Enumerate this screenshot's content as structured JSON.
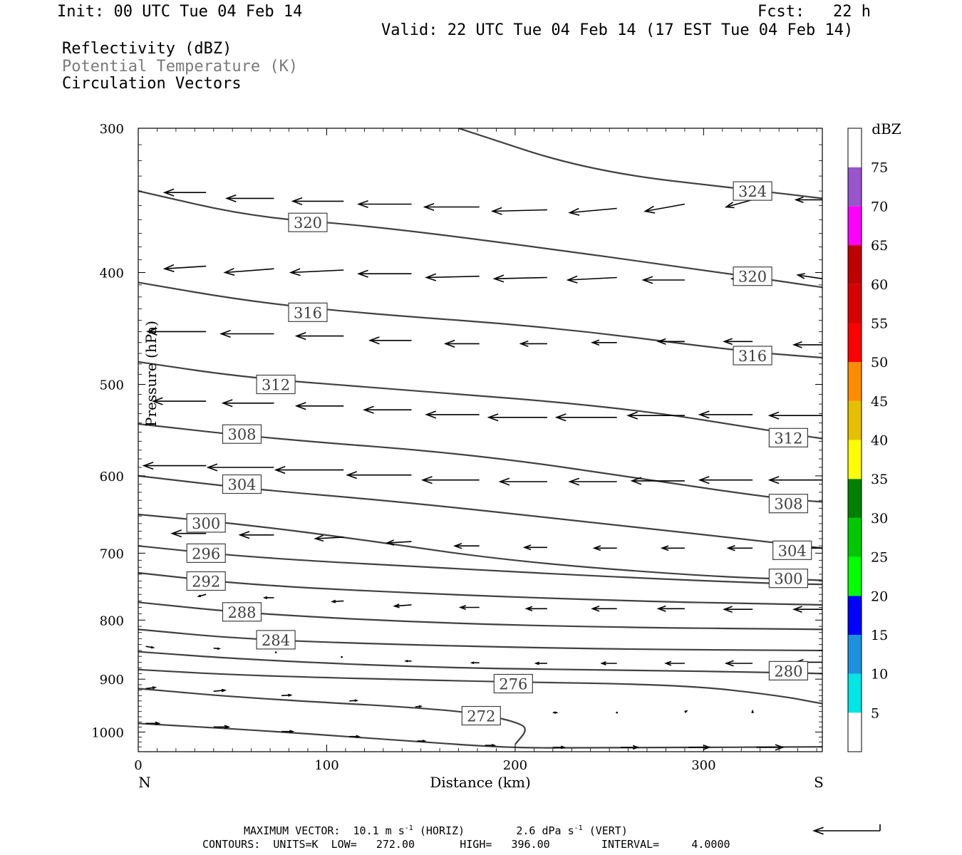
{
  "header": {
    "init": "Init: 00 UTC Tue 04 Feb 14",
    "fcst": "Fcst:   22 h",
    "valid": "Valid: 22 UTC Tue 04 Feb 14 (17 EST Tue 04 Feb 14)",
    "field1": "Reflectivity (dBZ)",
    "field2": "Potential Temperature (K)",
    "field3": "Circulation Vectors"
  },
  "footer": {
    "max_vector_label": "MAXIMUM VECTOR:",
    "max_vector_horiz": "10.1 m s",
    "horiz_suffix": "(HORIZ)",
    "max_vector_vert": "2.6 dPa s",
    "vert_suffix": "(VERT)",
    "sup": "-1",
    "contours": "CONTOURS:  UNITS=K  LOW=   272.00       HIGH=   396.00        INTERVAL=     4.0000"
  },
  "colors": {
    "contour": "#404040",
    "frame": "#000000",
    "legend": [
      "#ffffff",
      "#00e5e5",
      "#1e90e0",
      "#0000ff",
      "#00ff00",
      "#00c800",
      "#008000",
      "#ffff00",
      "#e5c000",
      "#ff8c00",
      "#ff0000",
      "#d70000",
      "#c00000",
      "#ff00ff",
      "#9955cc",
      "#ffffff"
    ]
  },
  "chart_data": {
    "type": "cross-section",
    "xlabel": "Distance (km)",
    "ylabel": "Pressure (hPa)",
    "xlim": [
      0,
      363
    ],
    "ylim": [
      300,
      1040
    ],
    "y_log": true,
    "xticks": [
      "0",
      "100",
      "200",
      "300"
    ],
    "xtick_values": [
      0,
      100,
      200,
      300
    ],
    "yticks": [
      "300",
      "400",
      "500",
      "600",
      "700",
      "800",
      "900",
      "1000"
    ],
    "ytick_values": [
      300,
      400,
      500,
      600,
      700,
      800,
      900,
      1000
    ],
    "left_end_label": "N",
    "right_end_label": "S",
    "colorbar_title": "dBZ",
    "colorbar_levels": [
      "5",
      "10",
      "15",
      "20",
      "25",
      "30",
      "35",
      "40",
      "45",
      "50",
      "55",
      "60",
      "65",
      "70",
      "75"
    ],
    "isentropes": [
      {
        "theta": 324,
        "points": [
          [
            170,
            300
          ],
          [
            240,
            327
          ],
          [
            330,
            340
          ],
          [
            363,
            345
          ]
        ]
      },
      {
        "theta": 320,
        "points": [
          [
            0,
            340
          ],
          [
            60,
            358
          ],
          [
            120,
            364
          ],
          [
            200,
            378
          ],
          [
            300,
            398
          ],
          [
            363,
            412
          ]
        ]
      },
      {
        "theta": 316,
        "points": [
          [
            0,
            408
          ],
          [
            60,
            424
          ],
          [
            120,
            434
          ],
          [
            220,
            446
          ],
          [
            320,
            468
          ],
          [
            363,
            474
          ]
        ]
      },
      {
        "theta": 312,
        "points": [
          [
            0,
            478
          ],
          [
            60,
            494
          ],
          [
            140,
            505
          ],
          [
            260,
            524
          ],
          [
            340,
            550
          ],
          [
            363,
            557
          ]
        ]
      },
      {
        "theta": 308,
        "points": [
          [
            0,
            541
          ],
          [
            70,
            557
          ],
          [
            180,
            575
          ],
          [
            280,
            608
          ],
          [
            340,
            628
          ],
          [
            363,
            632
          ]
        ]
      },
      {
        "theta": 304,
        "points": [
          [
            0,
            600
          ],
          [
            60,
            616
          ],
          [
            140,
            632
          ],
          [
            240,
            658
          ],
          [
            340,
            686
          ],
          [
            363,
            693
          ]
        ]
      },
      {
        "theta": 300,
        "points": [
          [
            0,
            648
          ],
          [
            60,
            662
          ],
          [
            120,
            682
          ],
          [
            200,
            712
          ],
          [
            300,
            733
          ],
          [
            363,
            739
          ]
        ]
      },
      {
        "theta": 296,
        "points": [
          [
            0,
            690
          ],
          [
            60,
            706
          ],
          [
            160,
            721
          ],
          [
            260,
            735
          ],
          [
            340,
            744
          ],
          [
            363,
            745
          ]
        ]
      },
      {
        "theta": 292,
        "points": [
          [
            0,
            728
          ],
          [
            60,
            746
          ],
          [
            160,
            760
          ],
          [
            260,
            770
          ],
          [
            340,
            775
          ],
          [
            363,
            776
          ]
        ]
      },
      {
        "theta": 288,
        "points": [
          [
            0,
            772
          ],
          [
            60,
            790
          ],
          [
            160,
            805
          ],
          [
            260,
            812
          ],
          [
            340,
            814
          ],
          [
            363,
            815
          ]
        ]
      },
      {
        "theta": 284,
        "points": [
          [
            0,
            815
          ],
          [
            60,
            832
          ],
          [
            160,
            842
          ],
          [
            260,
            848
          ],
          [
            363,
            850
          ]
        ]
      },
      {
        "theta": 280,
        "points": [
          [
            0,
            852
          ],
          [
            60,
            866
          ],
          [
            160,
            880
          ],
          [
            260,
            884
          ],
          [
            340,
            888
          ],
          [
            363,
            890
          ]
        ]
      },
      {
        "theta": 276,
        "points": [
          [
            0,
            883
          ],
          [
            60,
            894
          ],
          [
            180,
            904
          ],
          [
            290,
            910
          ],
          [
            340,
            930
          ],
          [
            363,
            945
          ]
        ]
      },
      {
        "theta": 272,
        "points": [
          [
            0,
            917
          ],
          [
            60,
            935
          ],
          [
            160,
            955
          ],
          [
            186,
            968
          ],
          [
            200,
            980
          ],
          [
            207,
            993
          ],
          [
            200,
            1025
          ]
        ]
      },
      {
        "theta": "unlabeled",
        "points": [
          [
            0,
            983
          ],
          [
            70,
            998
          ],
          [
            150,
            1020
          ],
          [
            196,
            1032
          ],
          [
            240,
            1032
          ],
          [
            363,
            1030
          ]
        ]
      }
    ],
    "contour_labels": [
      {
        "text": "324",
        "x": 326,
        "p": 340
      },
      {
        "text": "320",
        "x": 90,
        "p": 362
      },
      {
        "text": "320",
        "x": 326,
        "p": 403
      },
      {
        "text": "316",
        "x": 90,
        "p": 433
      },
      {
        "text": "316",
        "x": 326,
        "p": 472
      },
      {
        "text": "312",
        "x": 73,
        "p": 500
      },
      {
        "text": "312",
        "x": 345,
        "p": 556
      },
      {
        "text": "308",
        "x": 55,
        "p": 552
      },
      {
        "text": "308",
        "x": 345,
        "p": 634
      },
      {
        "text": "304",
        "x": 55,
        "p": 610
      },
      {
        "text": "304",
        "x": 347,
        "p": 696
      },
      {
        "text": "300",
        "x": 36,
        "p": 659
      },
      {
        "text": "300",
        "x": 345,
        "p": 736
      },
      {
        "text": "296",
        "x": 36,
        "p": 700
      },
      {
        "text": "292",
        "x": 36,
        "p": 740
      },
      {
        "text": "288",
        "x": 55,
        "p": 787
      },
      {
        "text": "284",
        "x": 73,
        "p": 832
      },
      {
        "text": "280",
        "x": 345,
        "p": 885
      },
      {
        "text": "276",
        "x": 199,
        "p": 908
      },
      {
        "text": "272",
        "x": 182,
        "p": 968
      }
    ],
    "vectors": [
      {
        "x": 36,
        "p": 341,
        "dx": -22,
        "dp": 0
      },
      {
        "x": 72,
        "p": 345,
        "dx": -25,
        "dp": 0
      },
      {
        "x": 109,
        "p": 347,
        "dx": -27,
        "dp": 0
      },
      {
        "x": 145,
        "p": 349,
        "dx": -28,
        "dp": 0
      },
      {
        "x": 181,
        "p": 351,
        "dx": -29,
        "dp": 0
      },
      {
        "x": 217,
        "p": 353,
        "dx": -29,
        "dp": 1
      },
      {
        "x": 254,
        "p": 352,
        "dx": -25,
        "dp": 3
      },
      {
        "x": 290,
        "p": 349,
        "dx": -21,
        "dp": 5
      },
      {
        "x": 326,
        "p": 346,
        "dx": -14,
        "dp": 5
      },
      {
        "x": 363,
        "p": 346,
        "dx": -14,
        "dp": 0
      },
      {
        "x": 36,
        "p": 395,
        "dx": -22,
        "dp": 2
      },
      {
        "x": 72,
        "p": 397,
        "dx": -26,
        "dp": 3
      },
      {
        "x": 109,
        "p": 398,
        "dx": -28,
        "dp": 2
      },
      {
        "x": 145,
        "p": 401,
        "dx": -28,
        "dp": 0
      },
      {
        "x": 181,
        "p": 403,
        "dx": -28,
        "dp": 1
      },
      {
        "x": 217,
        "p": 404,
        "dx": -28,
        "dp": 1
      },
      {
        "x": 254,
        "p": 404,
        "dx": -26,
        "dp": 2
      },
      {
        "x": 290,
        "p": 406,
        "dx": -22,
        "dp": 0
      },
      {
        "x": 326,
        "p": 405,
        "dx": -11,
        "dp": 0
      },
      {
        "x": 363,
        "p": 405,
        "dx": -13,
        "dp": -3
      },
      {
        "x": 36,
        "p": 450,
        "dx": -31,
        "dp": 0
      },
      {
        "x": 72,
        "p": 452,
        "dx": -28,
        "dp": 0
      },
      {
        "x": 109,
        "p": 454,
        "dx": -25,
        "dp": 0
      },
      {
        "x": 145,
        "p": 458,
        "dx": -22,
        "dp": 0
      },
      {
        "x": 181,
        "p": 461,
        "dx": -18,
        "dp": 0
      },
      {
        "x": 217,
        "p": 461,
        "dx": -14,
        "dp": 0
      },
      {
        "x": 254,
        "p": 460,
        "dx": -13,
        "dp": 0
      },
      {
        "x": 290,
        "p": 459,
        "dx": -14,
        "dp": 0
      },
      {
        "x": 326,
        "p": 459,
        "dx": -15,
        "dp": 0
      },
      {
        "x": 363,
        "p": 462,
        "dx": -15,
        "dp": 0
      },
      {
        "x": 36,
        "p": 517,
        "dx": -28,
        "dp": 0
      },
      {
        "x": 72,
        "p": 519,
        "dx": -27,
        "dp": 0
      },
      {
        "x": 109,
        "p": 522,
        "dx": -25,
        "dp": 0
      },
      {
        "x": 145,
        "p": 526,
        "dx": -25,
        "dp": 0
      },
      {
        "x": 181,
        "p": 531,
        "dx": -28,
        "dp": 0
      },
      {
        "x": 217,
        "p": 534,
        "dx": -31,
        "dp": 0
      },
      {
        "x": 254,
        "p": 534,
        "dx": -32,
        "dp": 0
      },
      {
        "x": 290,
        "p": 532,
        "dx": -30,
        "dp": 0
      },
      {
        "x": 326,
        "p": 531,
        "dx": -28,
        "dp": 0
      },
      {
        "x": 363,
        "p": 532,
        "dx": -28,
        "dp": 0
      },
      {
        "x": 36,
        "p": 588,
        "dx": -33,
        "dp": 0
      },
      {
        "x": 72,
        "p": 590,
        "dx": -35,
        "dp": 0
      },
      {
        "x": 109,
        "p": 593,
        "dx": -36,
        "dp": 0
      },
      {
        "x": 145,
        "p": 599,
        "dx": -34,
        "dp": 0
      },
      {
        "x": 181,
        "p": 605,
        "dx": -30,
        "dp": 0
      },
      {
        "x": 217,
        "p": 607,
        "dx": -25,
        "dp": 0
      },
      {
        "x": 254,
        "p": 607,
        "dx": -25,
        "dp": 0
      },
      {
        "x": 290,
        "p": 606,
        "dx": -28,
        "dp": 0
      },
      {
        "x": 326,
        "p": 605,
        "dx": -28,
        "dp": 0
      },
      {
        "x": 363,
        "p": 605,
        "dx": -28,
        "dp": 0
      },
      {
        "x": 36,
        "p": 673,
        "dx": -18,
        "dp": 0
      },
      {
        "x": 72,
        "p": 675,
        "dx": -18,
        "dp": 0
      },
      {
        "x": 109,
        "p": 678,
        "dx": -15,
        "dp": 2
      },
      {
        "x": 145,
        "p": 684,
        "dx": -13,
        "dp": 2
      },
      {
        "x": 181,
        "p": 690,
        "dx": -13,
        "dp": 0
      },
      {
        "x": 217,
        "p": 692,
        "dx": -12,
        "dp": 0
      },
      {
        "x": 254,
        "p": 693,
        "dx": -12,
        "dp": 0
      },
      {
        "x": 290,
        "p": 693,
        "dx": -12,
        "dp": 0
      },
      {
        "x": 326,
        "p": 693,
        "dx": -13,
        "dp": 0
      },
      {
        "x": 363,
        "p": 693,
        "dx": -13,
        "dp": 0
      },
      {
        "x": 36,
        "p": 760,
        "dx": -4,
        "dp": 3
      },
      {
        "x": 72,
        "p": 765,
        "dx": -5,
        "dp": 0
      },
      {
        "x": 109,
        "p": 770,
        "dx": -6,
        "dp": 1
      },
      {
        "x": 145,
        "p": 776,
        "dx": -9,
        "dp": 2
      },
      {
        "x": 181,
        "p": 780,
        "dx": -10,
        "dp": 0
      },
      {
        "x": 217,
        "p": 782,
        "dx": -11,
        "dp": 0
      },
      {
        "x": 254,
        "p": 782,
        "dx": -13,
        "dp": 0
      },
      {
        "x": 290,
        "p": 782,
        "dx": -14,
        "dp": 0
      },
      {
        "x": 326,
        "p": 783,
        "dx": -15,
        "dp": 0
      },
      {
        "x": 363,
        "p": 783,
        "dx": -15,
        "dp": 0
      },
      {
        "x": 4,
        "p": 843,
        "dx": 4,
        "dp": 2
      },
      {
        "x": 40,
        "p": 846,
        "dx": 3,
        "dp": 1
      },
      {
        "x": 73,
        "p": 853,
        "dx": 0,
        "dp": 0
      },
      {
        "x": 108,
        "p": 861,
        "dx": 0,
        "dp": 0
      },
      {
        "x": 145,
        "p": 868,
        "dx": -3,
        "dp": 0
      },
      {
        "x": 181,
        "p": 871,
        "dx": -4,
        "dp": 0
      },
      {
        "x": 217,
        "p": 872,
        "dx": -6,
        "dp": 0
      },
      {
        "x": 254,
        "p": 872,
        "dx": -8,
        "dp": 0
      },
      {
        "x": 290,
        "p": 872,
        "dx": -10,
        "dp": 0
      },
      {
        "x": 326,
        "p": 872,
        "dx": -14,
        "dp": 0
      },
      {
        "x": 363,
        "p": 870,
        "dx": -14,
        "dp": 0
      },
      {
        "x": 4,
        "p": 917,
        "dx": 5,
        "dp": -2
      },
      {
        "x": 40,
        "p": 922,
        "dx": 6,
        "dp": -2
      },
      {
        "x": 76,
        "p": 930,
        "dx": 5,
        "dp": -1
      },
      {
        "x": 112,
        "p": 940,
        "dx": 4,
        "dp": -1
      },
      {
        "x": 147,
        "p": 951,
        "dx": 3,
        "dp": -1
      },
      {
        "x": 185,
        "p": 960,
        "dx": 3,
        "dp": 0
      },
      {
        "x": 220,
        "p": 962,
        "dx": 2,
        "dp": 0
      },
      {
        "x": 254,
        "p": 962,
        "dx": 0,
        "dp": 0
      },
      {
        "x": 290,
        "p": 961,
        "dx": 1,
        "dp": -2
      },
      {
        "x": 326,
        "p": 962,
        "dx": 0,
        "dp": -3
      },
      {
        "x": 4,
        "p": 983,
        "dx": 7,
        "dp": 0
      },
      {
        "x": 40,
        "p": 990,
        "dx": 8,
        "dp": 0
      },
      {
        "x": 76,
        "p": 999,
        "dx": 6,
        "dp": 0
      },
      {
        "x": 112,
        "p": 1009,
        "dx": 5,
        "dp": 0
      },
      {
        "x": 148,
        "p": 1018,
        "dx": 4,
        "dp": 0
      },
      {
        "x": 184,
        "p": 1027,
        "dx": 5,
        "dp": 0
      },
      {
        "x": 220,
        "p": 1031,
        "dx": 6,
        "dp": 0
      },
      {
        "x": 256,
        "p": 1031,
        "dx": 9,
        "dp": 0
      },
      {
        "x": 292,
        "p": 1031,
        "dx": 11,
        "dp": 0
      },
      {
        "x": 328,
        "p": 1031,
        "dx": 14,
        "dp": 0
      }
    ],
    "reference_vector": {
      "dx": -35,
      "dp": 0
    }
  }
}
